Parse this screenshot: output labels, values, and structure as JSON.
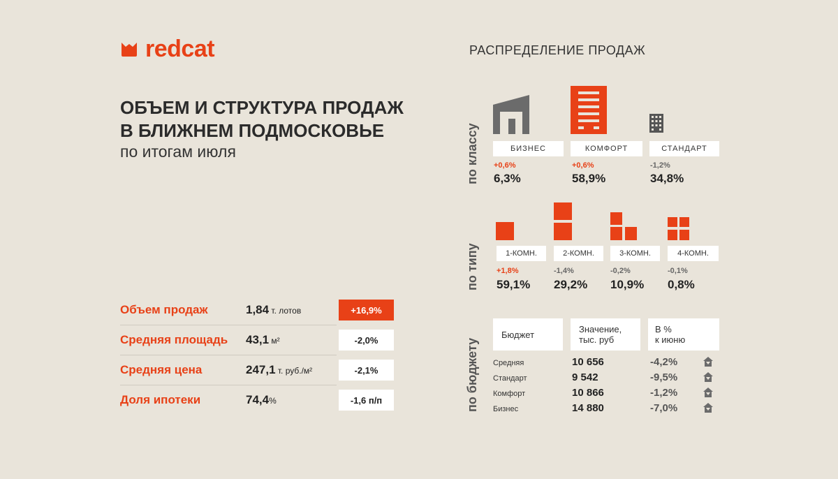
{
  "logo": {
    "text": "redcat"
  },
  "header": {
    "title_line1": "ОБЪЕМ И СТРУКТУРА ПРОДАЖ",
    "title_line2": "В БЛИЖНЕМ ПОДМОСКОВЬЕ",
    "subtitle": "по итогам июля"
  },
  "metrics": [
    {
      "name": "Объем продаж",
      "value": "1,84",
      "unit": " т. лотов",
      "change": "+16,9%",
      "highlight": true
    },
    {
      "name": "Средняя площадь",
      "value": "43,1",
      "unit": " м²",
      "change": "-2,0%",
      "highlight": false
    },
    {
      "name": "Средняя цена",
      "value": "247,1",
      "unit": " т. руб./м²",
      "change": "-2,1%",
      "highlight": false
    },
    {
      "name": "Доля ипотеки",
      "value": "74,4",
      "unit": "%",
      "change": "-1,6 п/п",
      "highlight": false
    }
  ],
  "distribution": {
    "title": "РАСПРЕДЕЛЕНИЕ ПРОДАЖ",
    "by_class": {
      "label": "по классу",
      "items": [
        {
          "name": "БИЗНЕС",
          "delta": "+0,6%",
          "share": "6,3%",
          "icon": "business-building-icon"
        },
        {
          "name": "КОМФОРТ",
          "delta": "+0,6%",
          "share": "58,9%",
          "icon": "comfort-building-icon"
        },
        {
          "name": "СТАНДАРТ",
          "delta": "-1,2%",
          "share": "34,8%",
          "icon": "standard-building-icon"
        }
      ]
    },
    "by_type": {
      "label": "по типу",
      "items": [
        {
          "name": "1-КОМН.",
          "delta": "+1,8%",
          "share": "59,1%",
          "icon": "one-room-icon"
        },
        {
          "name": "2-КОМН.",
          "delta": "-1,4%",
          "share": "29,2%",
          "icon": "two-room-icon"
        },
        {
          "name": "3-КОМН.",
          "delta": "-0,2%",
          "share": "10,9%",
          "icon": "three-room-icon"
        },
        {
          "name": "4-КОМН.",
          "delta": "-0,1%",
          "share": "0,8%",
          "icon": "four-room-icon"
        }
      ]
    },
    "by_budget": {
      "label": "по бюджету",
      "headers": [
        "Бюджет",
        "Значение, тыс. руб",
        "В % к июню"
      ],
      "header_lines": [
        [
          "Бюджет"
        ],
        [
          "Значение,",
          "тыс. руб"
        ],
        [
          "В %",
          "к июню"
        ]
      ],
      "rows": [
        {
          "name": "Средняя",
          "value": "10 656",
          "change": "-4,2%"
        },
        {
          "name": "Стандарт",
          "value": "9 542",
          "change": "-9,5%"
        },
        {
          "name": "Комфорт",
          "value": "10 866",
          "change": "-1,2%"
        },
        {
          "name": "Бизнес",
          "value": "14 880",
          "change": "-7,0%"
        }
      ],
      "row_icon": "house-down-icon"
    }
  },
  "colors": {
    "accent": "#e84117",
    "background": "#e9e4da",
    "gray_icon": "#6b6b6b"
  }
}
